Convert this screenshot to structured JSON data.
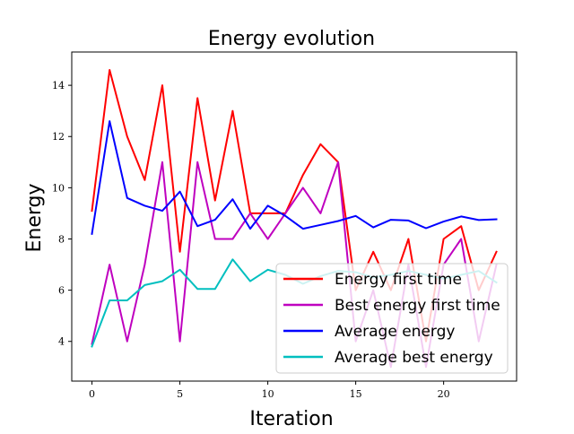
{
  "chart_data": {
    "type": "line",
    "title": "Energy evolution",
    "xlabel": "Iteration",
    "ylabel": "Energy",
    "xlim": [
      -1.15,
      24.15
    ],
    "ylim": [
      2.45,
      15.3
    ],
    "xticks": [
      0,
      5,
      10,
      15,
      20
    ],
    "yticks": [
      4,
      6,
      8,
      10,
      12,
      14
    ],
    "grid": false,
    "legend_position": "lower-right",
    "x": [
      0,
      1,
      2,
      3,
      4,
      5,
      6,
      7,
      8,
      9,
      10,
      11,
      12,
      13,
      14,
      15,
      16,
      17,
      18,
      19,
      20,
      21,
      22,
      23
    ],
    "series": [
      {
        "name": "Energy first time",
        "color": "#ff0000",
        "values": [
          9.1,
          14.6,
          12.0,
          10.3,
          14.0,
          7.5,
          13.5,
          9.5,
          13.0,
          9.0,
          9.0,
          9.0,
          10.5,
          11.7,
          11.0,
          6.0,
          7.5,
          6.0,
          8.0,
          4.0,
          8.0,
          8.5,
          6.0,
          7.5
        ]
      },
      {
        "name": "Best energy first time",
        "color": "#bf00bf",
        "values": [
          3.9,
          7.0,
          4.0,
          7.0,
          11.0,
          4.0,
          11.0,
          8.0,
          8.0,
          9.0,
          8.0,
          9.0,
          10.0,
          9.0,
          11.0,
          4.0,
          6.0,
          3.0,
          7.0,
          3.0,
          7.0,
          8.0,
          4.0,
          7.0
        ]
      },
      {
        "name": "Average energy",
        "color": "#0000ff",
        "values": [
          8.2,
          12.6,
          9.6,
          9.3,
          9.1,
          9.85,
          8.5,
          8.75,
          9.55,
          8.4,
          9.3,
          8.9,
          8.4,
          8.55,
          8.7,
          8.9,
          8.45,
          8.75,
          8.72,
          8.42,
          8.68,
          8.88,
          8.74,
          8.77
        ]
      },
      {
        "name": "Average best energy",
        "color": "#00bfbf",
        "values": [
          3.8,
          5.6,
          5.6,
          6.2,
          6.35,
          6.8,
          6.05,
          6.05,
          7.2,
          6.35,
          6.8,
          6.6,
          6.25,
          6.55,
          6.75,
          6.7,
          6.5,
          6.6,
          6.75,
          6.6,
          6.45,
          6.6,
          6.75,
          6.3
        ]
      }
    ]
  }
}
